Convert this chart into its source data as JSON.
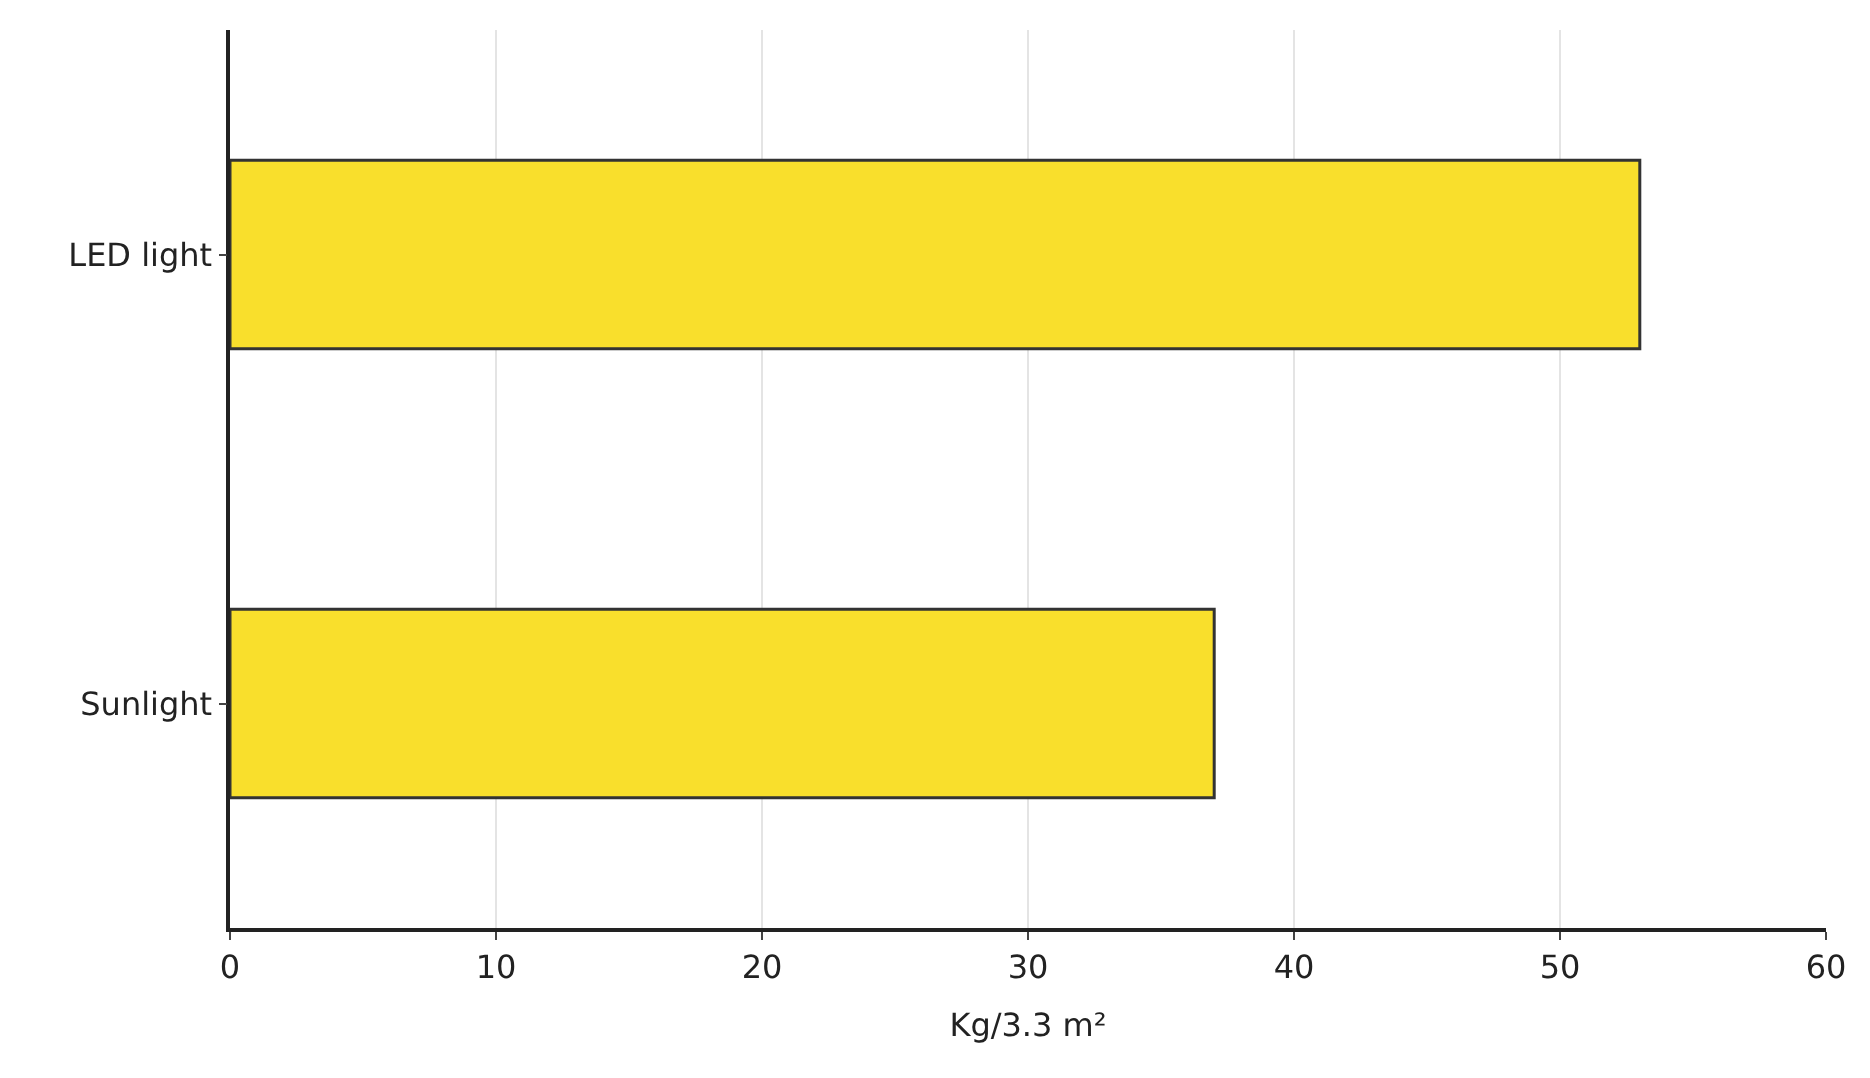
{
  "chart_data": {
    "type": "bar",
    "orientation": "horizontal",
    "categories": [
      "LED light",
      "Sunlight"
    ],
    "values": [
      53,
      37
    ],
    "color": "#f9df2c",
    "xlabel": "Kg/3.3 m²",
    "xlim": [
      0,
      60
    ],
    "xticks": [
      0,
      10,
      20,
      30,
      40,
      50,
      60
    ],
    "grid": "x"
  }
}
